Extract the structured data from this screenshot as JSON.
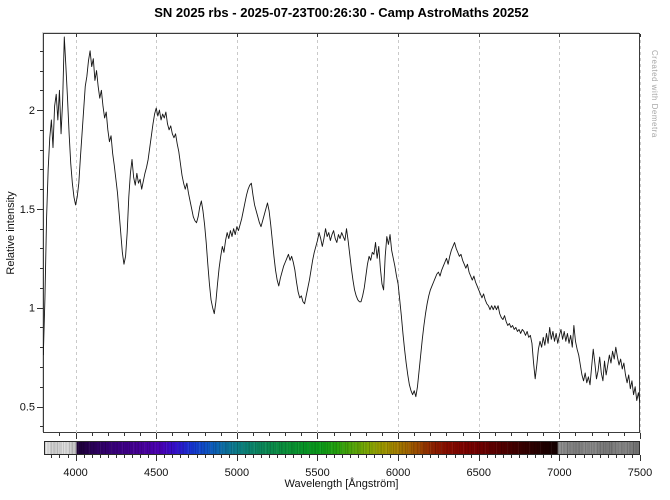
{
  "title": "SN 2025 rbs - 2025-07-23T00:26:30 - Camp AstroMaths 20252",
  "watermark": "Created with Demetra",
  "chart_data": {
    "type": "line",
    "title": "SN 2025 rbs - 2025-07-23T00:26:30 - Camp AstroMaths 20252",
    "xlabel": "Wavelength [Ångström]",
    "ylabel": "Relative intensity",
    "xlim": [
      3798,
      7500
    ],
    "ylim": [
      0.366,
      2.39
    ],
    "grid": "vertical-dashed",
    "legend": "none",
    "line_color": "#151515",
    "x_major_ticks": [
      4000,
      4500,
      5000,
      5500,
      6000,
      6500,
      7000,
      7500
    ],
    "x_tick_labels": [
      "4000",
      "4500",
      "5000",
      "5500",
      "6000",
      "6500",
      "7000",
      "7500"
    ],
    "x_minor_step": 100,
    "colorbar_tick_step": 50,
    "y_major_ticks": [
      0.5,
      1,
      1.5,
      2
    ],
    "y_tick_labels": [
      "0.5",
      "1",
      "1.5",
      "2"
    ],
    "y_minor_step": 0.1,
    "x_start": 3800,
    "x_step": 10,
    "intensity": [
      0.76,
      1.05,
      1.45,
      1.7,
      1.86,
      1.95,
      1.81,
      2.02,
      2.08,
      1.95,
      2.1,
      1.88,
      2.05,
      2.37,
      2.22,
      2.06,
      1.88,
      1.73,
      1.63,
      1.56,
      1.52,
      1.56,
      1.63,
      1.76,
      1.88,
      2.0,
      2.12,
      2.17,
      2.25,
      2.3,
      2.22,
      2.26,
      2.15,
      2.2,
      2.12,
      2.06,
      2.1,
      2.02,
      1.96,
      1.99,
      1.9,
      1.84,
      1.87,
      1.78,
      1.72,
      1.65,
      1.58,
      1.48,
      1.38,
      1.28,
      1.22,
      1.26,
      1.38,
      1.56,
      1.68,
      1.75,
      1.66,
      1.62,
      1.68,
      1.63,
      1.65,
      1.6,
      1.64,
      1.68,
      1.71,
      1.75,
      1.81,
      1.87,
      1.93,
      1.98,
      2.01,
      1.97,
      2.0,
      1.95,
      1.98,
      1.96,
      1.99,
      1.93,
      1.9,
      1.92,
      1.88,
      1.86,
      1.88,
      1.83,
      1.79,
      1.73,
      1.67,
      1.63,
      1.6,
      1.63,
      1.58,
      1.54,
      1.5,
      1.46,
      1.44,
      1.43,
      1.46,
      1.51,
      1.54,
      1.49,
      1.42,
      1.33,
      1.22,
      1.12,
      1.04,
      1.0,
      0.97,
      1.03,
      1.12,
      1.2,
      1.26,
      1.31,
      1.28,
      1.34,
      1.38,
      1.35,
      1.39,
      1.36,
      1.4,
      1.37,
      1.41,
      1.39,
      1.42,
      1.45,
      1.49,
      1.53,
      1.57,
      1.6,
      1.62,
      1.63,
      1.57,
      1.52,
      1.49,
      1.46,
      1.43,
      1.41,
      1.44,
      1.47,
      1.5,
      1.53,
      1.49,
      1.42,
      1.34,
      1.26,
      1.19,
      1.14,
      1.11,
      1.15,
      1.18,
      1.21,
      1.23,
      1.25,
      1.27,
      1.24,
      1.26,
      1.23,
      1.19,
      1.13,
      1.08,
      1.05,
      1.06,
      1.03,
      1.02,
      1.06,
      1.1,
      1.14,
      1.19,
      1.24,
      1.28,
      1.31,
      1.34,
      1.38,
      1.35,
      1.31,
      1.35,
      1.4,
      1.36,
      1.38,
      1.34,
      1.37,
      1.39,
      1.35,
      1.33,
      1.37,
      1.35,
      1.38,
      1.36,
      1.34,
      1.4,
      1.34,
      1.27,
      1.2,
      1.14,
      1.09,
      1.06,
      1.04,
      1.03,
      1.03,
      1.06,
      1.1,
      1.16,
      1.22,
      1.26,
      1.24,
      1.28,
      1.27,
      1.33,
      1.25,
      1.31,
      1.2,
      1.12,
      1.09,
      1.26,
      1.36,
      1.32,
      1.37,
      1.29,
      1.25,
      1.21,
      1.16,
      1.12,
      1.04,
      0.96,
      0.87,
      0.79,
      0.72,
      0.66,
      0.61,
      0.58,
      0.56,
      0.58,
      0.55,
      0.6,
      0.68,
      0.76,
      0.84,
      0.91,
      0.97,
      1.02,
      1.06,
      1.09,
      1.11,
      1.13,
      1.15,
      1.17,
      1.18,
      1.16,
      1.19,
      1.21,
      1.23,
      1.25,
      1.22,
      1.26,
      1.29,
      1.31,
      1.33,
      1.3,
      1.28,
      1.26,
      1.27,
      1.24,
      1.22,
      1.2,
      1.22,
      1.18,
      1.16,
      1.14,
      1.16,
      1.13,
      1.11,
      1.09,
      1.07,
      1.05,
      1.07,
      1.04,
      1.02,
      1.01,
      0.99,
      1.01,
      0.99,
      1.01,
      0.99,
      1.01,
      0.97,
      0.95,
      0.94,
      0.96,
      0.93,
      0.91,
      0.92,
      0.9,
      0.91,
      0.89,
      0.9,
      0.88,
      0.89,
      0.87,
      0.89,
      0.88,
      0.86,
      0.88,
      0.85,
      0.86,
      0.82,
      0.72,
      0.64,
      0.71,
      0.79,
      0.83,
      0.8,
      0.85,
      0.81,
      0.87,
      0.82,
      0.9,
      0.84,
      0.88,
      0.83,
      0.87,
      0.82,
      0.86,
      0.89,
      0.84,
      0.88,
      0.83,
      0.87,
      0.82,
      0.86,
      0.8,
      0.91,
      0.83,
      0.79,
      0.76,
      0.71,
      0.66,
      0.63,
      0.67,
      0.62,
      0.65,
      0.61,
      0.7,
      0.79,
      0.72,
      0.64,
      0.68,
      0.75,
      0.67,
      0.63,
      0.73,
      0.66,
      0.71,
      0.76,
      0.72,
      0.78,
      0.74,
      0.8,
      0.75,
      0.71,
      0.74,
      0.69,
      0.72,
      0.66,
      0.62,
      0.66,
      0.59,
      0.63,
      0.56,
      0.6,
      0.53,
      0.57,
      0.52
    ],
    "colorbar_stops": [
      [
        3800,
        "#ececec"
      ],
      [
        3870,
        "#c8c8c8"
      ],
      [
        3920,
        "#e0e0e0"
      ],
      [
        3970,
        "#cccccc"
      ],
      [
        3999,
        "#c2c2c2"
      ],
      [
        4000,
        "#1c0034"
      ],
      [
        4120,
        "#2c005e"
      ],
      [
        4250,
        "#3a007e"
      ],
      [
        4400,
        "#470098"
      ],
      [
        4520,
        "#4a00b4"
      ],
      [
        4620,
        "#3310cc"
      ],
      [
        4720,
        "#1535d2"
      ],
      [
        4820,
        "#0d55c2"
      ],
      [
        4920,
        "#0c6fa2"
      ],
      [
        5020,
        "#0b7f80"
      ],
      [
        5120,
        "#0a8562"
      ],
      [
        5220,
        "#0a8a4a"
      ],
      [
        5320,
        "#099036"
      ],
      [
        5420,
        "#089426"
      ],
      [
        5520,
        "#0a9a18"
      ],
      [
        5620,
        "#25a00e"
      ],
      [
        5720,
        "#52a408"
      ],
      [
        5820,
        "#80a503"
      ],
      [
        5900,
        "#9b9800"
      ],
      [
        5980,
        "#a28200"
      ],
      [
        6060,
        "#a06400"
      ],
      [
        6140,
        "#984200"
      ],
      [
        6220,
        "#8d2000"
      ],
      [
        6300,
        "#870e00"
      ],
      [
        6400,
        "#7e0300"
      ],
      [
        6500,
        "#700000"
      ],
      [
        6600,
        "#5c0000"
      ],
      [
        6700,
        "#470000"
      ],
      [
        6800,
        "#330000"
      ],
      [
        6900,
        "#210000"
      ],
      [
        6990,
        "#140000"
      ],
      [
        7000,
        "#909090"
      ],
      [
        7100,
        "#7e7e7e"
      ],
      [
        7200,
        "#8a8a8a"
      ],
      [
        7300,
        "#767676"
      ],
      [
        7400,
        "#888888"
      ],
      [
        7500,
        "#6e6e6e"
      ]
    ],
    "grid_color": "#c9c9c9",
    "tick_color": "#333333"
  }
}
